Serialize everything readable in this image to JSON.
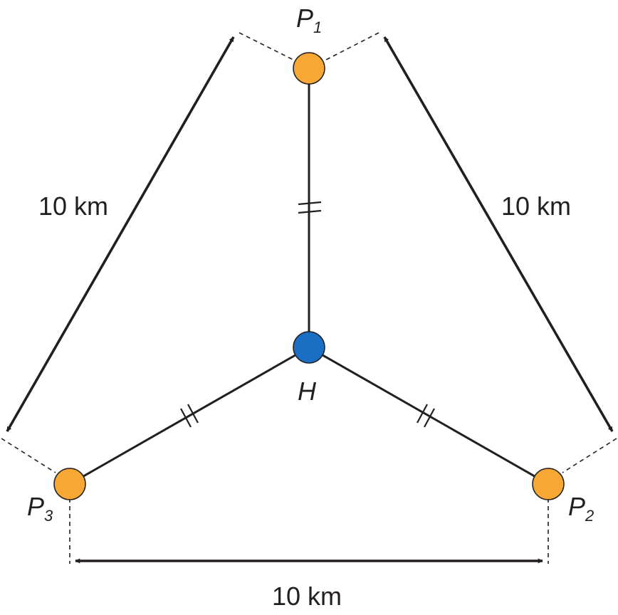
{
  "points": {
    "p1": {
      "letter": "P",
      "sub": "1",
      "color": "#f7a733"
    },
    "p2": {
      "letter": "P",
      "sub": "2",
      "color": "#f7a733"
    },
    "p3": {
      "letter": "P",
      "sub": "3",
      "color": "#f7a733"
    },
    "h": {
      "letter": "H",
      "color": "#1a6fc4"
    }
  },
  "distances": {
    "left": "10 km",
    "right": "10 km",
    "bottom": "10 km"
  },
  "colors": {
    "line": "#231f20",
    "point_outline": "#231f20"
  }
}
